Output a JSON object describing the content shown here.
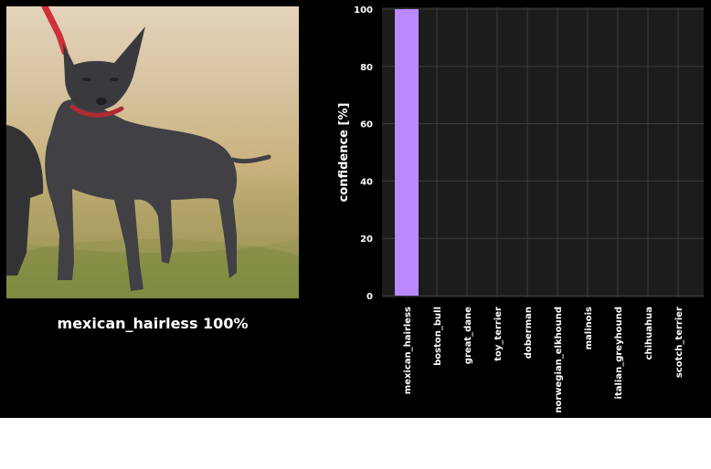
{
  "prediction": {
    "label": "mexican_hairless",
    "percent": "100%"
  },
  "photo": {
    "subject": "black hairless dog on grass with red leash"
  },
  "colors": {
    "bar": "#bb88ff",
    "plot_bg": "#1c1c1c",
    "grid": "#3c3c3c",
    "text": "#ffffff"
  },
  "chart_data": {
    "type": "bar",
    "categories": [
      "mexican_hairless",
      "boston_bull",
      "great_dane",
      "toy_terrier",
      "doberman",
      "norwegian_elkhound",
      "malinois",
      "italian_greyhound",
      "chihuahua",
      "scotch_terrier"
    ],
    "values": [
      100,
      0,
      0,
      0,
      0,
      0,
      0,
      0,
      0,
      0
    ],
    "xlabel": "",
    "ylabel": "confidence [%]",
    "ylim": [
      0,
      100
    ],
    "yticks": [
      0,
      20,
      40,
      60,
      80,
      100
    ],
    "grid": true
  }
}
